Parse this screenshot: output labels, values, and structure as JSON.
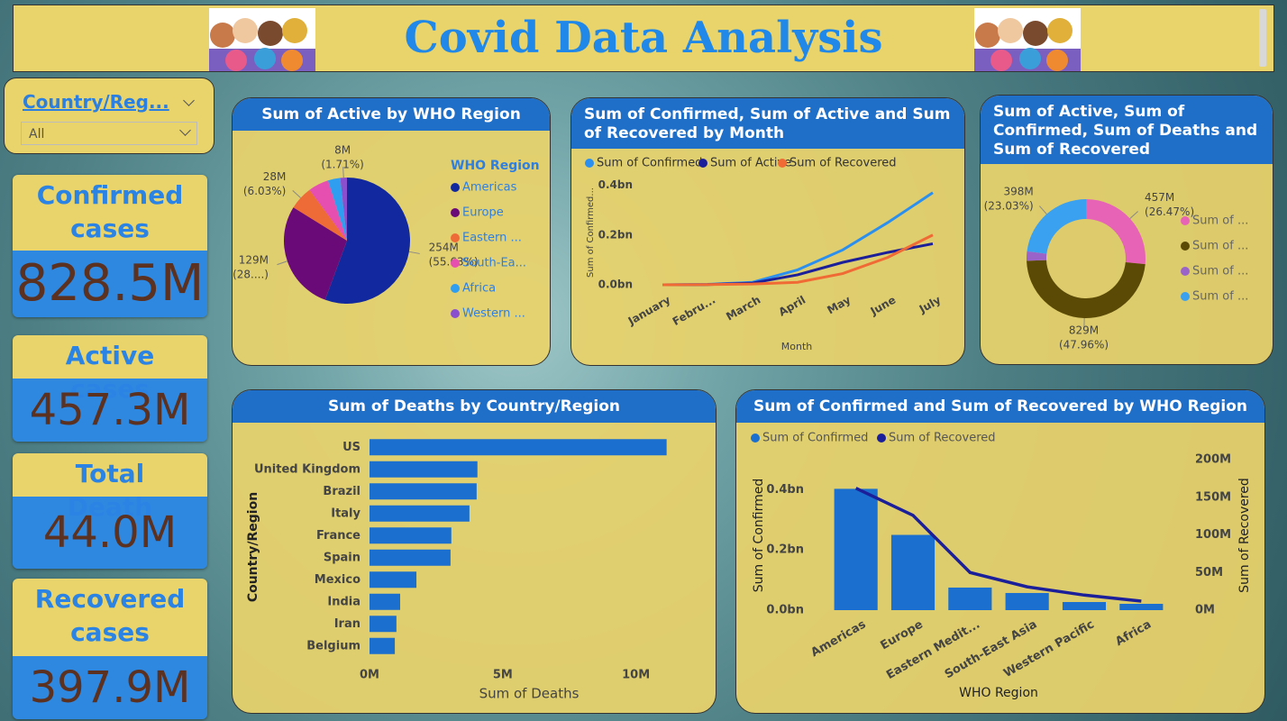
{
  "header": {
    "title": "Covid Data Analysis"
  },
  "slicer": {
    "field": "Country/Reg...",
    "selection": "All"
  },
  "kpis": [
    {
      "label": "Confirmed cases",
      "value": "828.5M"
    },
    {
      "label": "Active cases",
      "value": "457.3M"
    },
    {
      "label": "Total Death",
      "value": "44.0M"
    },
    {
      "label": "Recovered cases",
      "value": "397.9M"
    }
  ],
  "chart_data": [
    {
      "type": "pie",
      "title": "Sum of Active by WHO Region",
      "legend_title": "WHO Region",
      "categories": [
        "Americas",
        "Europe",
        "Eastern ...",
        "South-Ea...",
        "Africa",
        "Western ..."
      ],
      "values": [
        254.4,
        129.0,
        27.6,
        24.0,
        14.5,
        7.8
      ],
      "value_labels": [
        "254M",
        "129M",
        "28M",
        null,
        null,
        "8M"
      ],
      "percent_labels": [
        "(55.63%)",
        "(28....)",
        "(6.03%)",
        null,
        null,
        "(1.71%)"
      ],
      "colors": [
        "#12289e",
        "#6a0a78",
        "#ee6a37",
        "#e64fb0",
        "#2f9ef0",
        "#8a4fcf"
      ]
    },
    {
      "type": "line",
      "title": "Sum of Confirmed, Sum of Active and Sum of Recovered by Month",
      "categories": [
        "January",
        "Febru...",
        "March",
        "April",
        "May",
        "June",
        "July"
      ],
      "series": [
        {
          "name": "Sum of Confirmed",
          "color": "#2b8ff0",
          "values": [
            0.0,
            0.002,
            0.01,
            0.06,
            0.14,
            0.25,
            0.37
          ]
        },
        {
          "name": "Sum of Active",
          "color": "#1c1f9a",
          "values": [
            0.0,
            0.001,
            0.007,
            0.04,
            0.09,
            0.13,
            0.165
          ]
        },
        {
          "name": "Sum of Recovered",
          "color": "#f06a35",
          "values": [
            0.0,
            0.001,
            0.003,
            0.01,
            0.045,
            0.11,
            0.2
          ]
        }
      ],
      "ylim": [
        0,
        0.42
      ],
      "yticks": [
        {
          "value": 0,
          "label": "0.0bn"
        },
        {
          "value": 0.2,
          "label": "0.2bn"
        },
        {
          "value": 0.4,
          "label": "0.4bn"
        }
      ],
      "y_label": "Sum of Confirmed...",
      "x_label": "Month"
    },
    {
      "type": "donut",
      "title": "Sum of Active, Sum of Confirmed, Sum of Deaths and Sum of Recovered",
      "categories": [
        "Sum of ...",
        "Sum of ...",
        "Sum of ...",
        "Sum of ..."
      ],
      "values": [
        457.3,
        828.5,
        44.0,
        397.9
      ],
      "value_labels": [
        "457M",
        "829M",
        null,
        "398M"
      ],
      "percent_labels": [
        "(26.47%)",
        "(47.96%)",
        null,
        "(23.03%)"
      ],
      "colors": [
        "#e763b6",
        "#5a4a06",
        "#9a63c9",
        "#3aa0f0"
      ]
    },
    {
      "type": "hbar",
      "title": "Sum of Deaths by Country/Region",
      "categories": [
        "US",
        "United Kingdom",
        "Brazil",
        "Italy",
        "France",
        "Spain",
        "Mexico",
        "India",
        "Iran",
        "Belgium"
      ],
      "values": [
        11.15,
        4.05,
        4.02,
        3.75,
        3.07,
        3.04,
        1.76,
        1.15,
        1.01,
        0.95
      ],
      "color": "#1a6fcf",
      "xlim": [
        0,
        11.5
      ],
      "xticks": [
        {
          "value": 0,
          "label": "0M"
        },
        {
          "value": 5,
          "label": "5M"
        },
        {
          "value": 10,
          "label": "10M"
        }
      ],
      "x_label": "Sum of Deaths",
      "y_label": "Country/Region"
    },
    {
      "type": "combo",
      "title": "Sum of Confirmed and Sum of Recovered by WHO Region",
      "categories": [
        "Americas",
        "Europe",
        "Eastern Medit...",
        "South-East Asia",
        "Western Pacific",
        "Africa"
      ],
      "series": [
        {
          "name": "Sum of Confirmed",
          "color": "#1a6fcf",
          "values": [
            0.403,
            0.25,
            0.075,
            0.057,
            0.027,
            0.021
          ]
        },
        {
          "name": "Sum of Recovered",
          "color": "#1c1f9a",
          "axis": "y2",
          "values": [
            162,
            126,
            50,
            31,
            20,
            12
          ]
        }
      ],
      "ylim": [
        0,
        0.5
      ],
      "yticks": [
        {
          "value": 0,
          "label": "0.0bn"
        },
        {
          "value": 0.2,
          "label": "0.2bn"
        },
        {
          "value": 0.4,
          "label": "0.4bn"
        }
      ],
      "y2lim": [
        0,
        200
      ],
      "y2ticks": [
        {
          "value": 0,
          "label": "0M"
        },
        {
          "value": 50,
          "label": "50M"
        },
        {
          "value": 100,
          "label": "100M"
        },
        {
          "value": 150,
          "label": "150M"
        },
        {
          "value": 200,
          "label": "200M"
        }
      ],
      "y_label": "Sum of Confirmed",
      "y2_label": "Sum of Recovered",
      "x_label": "WHO Region"
    }
  ]
}
